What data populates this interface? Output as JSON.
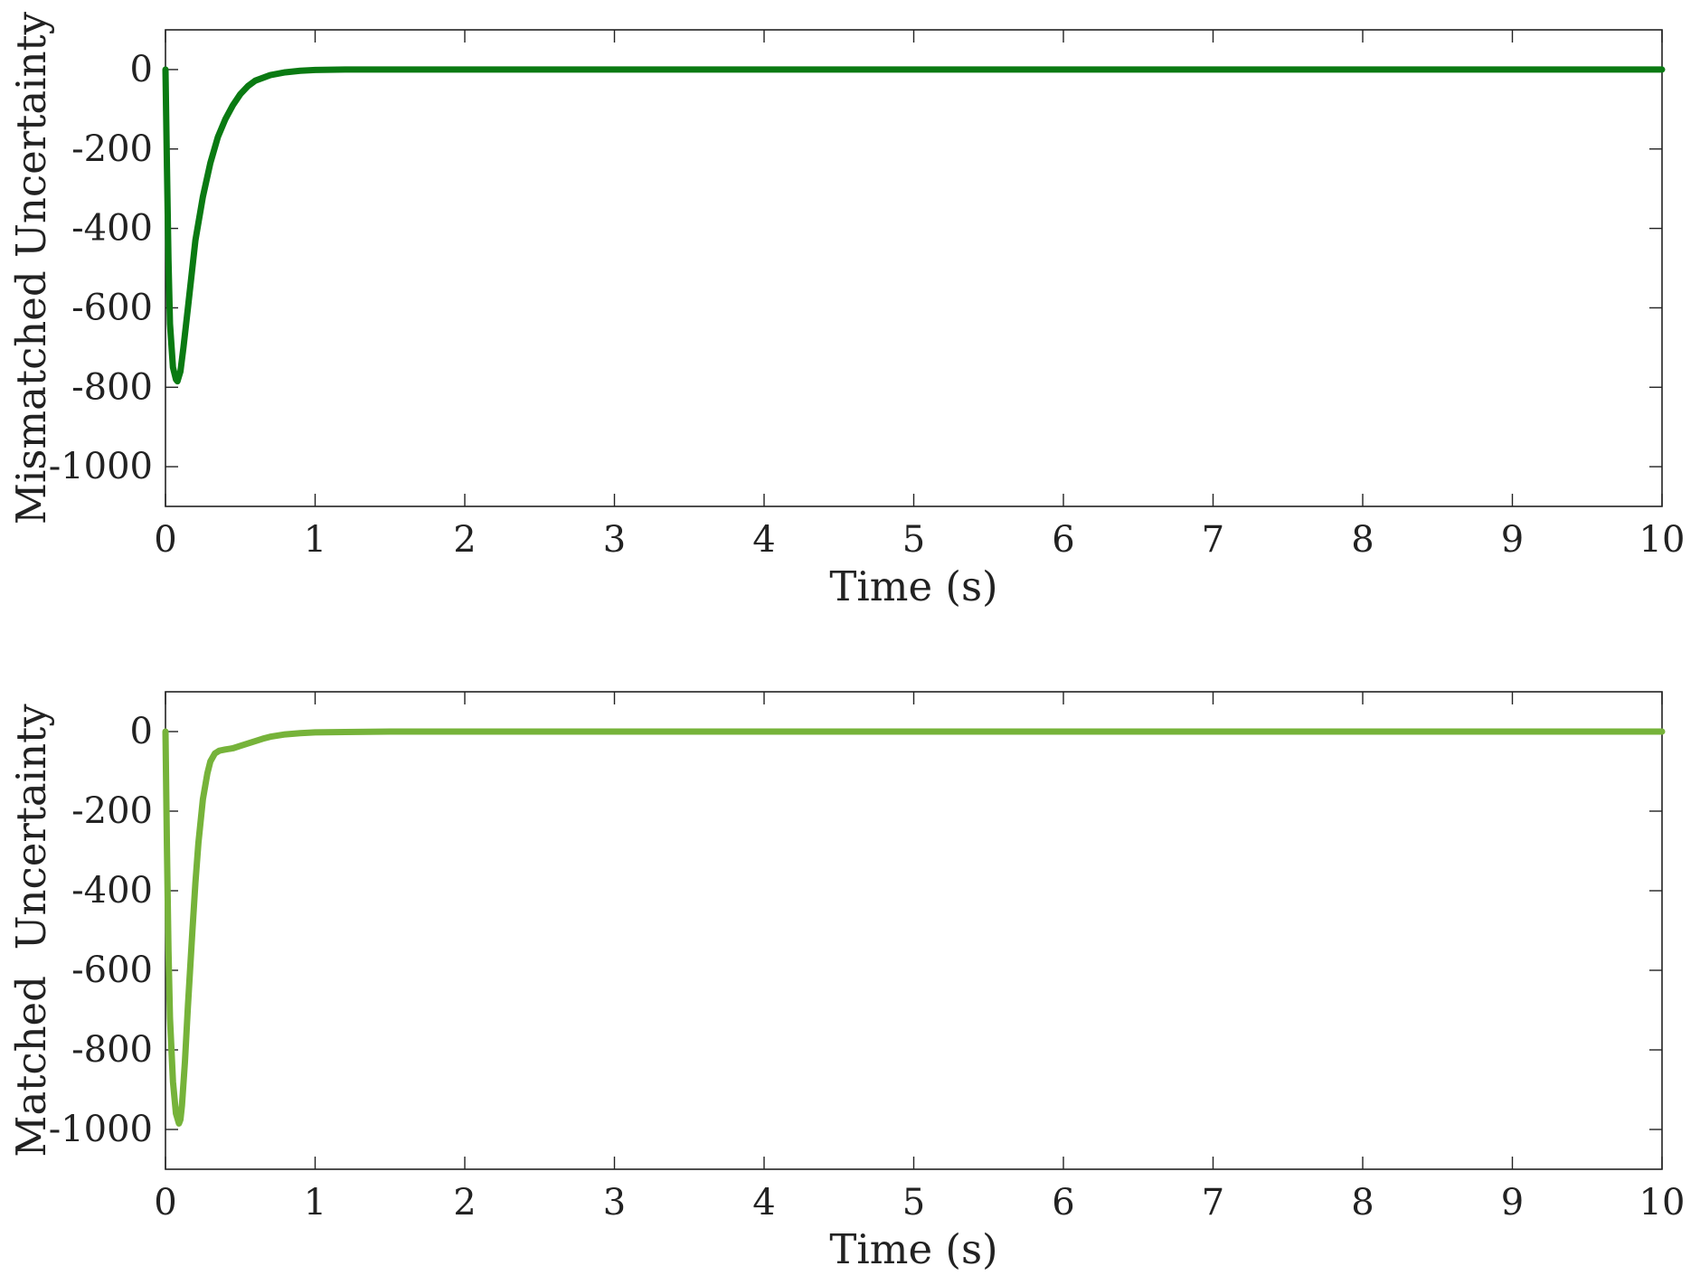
{
  "chart_data": [
    {
      "type": "line",
      "title": "",
      "xlabel": "Time (s)",
      "ylabel": "Mismatched Uncertainty",
      "xlim": [
        0,
        10
      ],
      "ylim": [
        -1100,
        100
      ],
      "x_ticks": [
        "0",
        "1",
        "2",
        "3",
        "4",
        "5",
        "6",
        "7",
        "8",
        "9",
        "10"
      ],
      "y_ticks": [
        "0",
        "-200",
        "-400",
        "-600",
        "-800",
        "-1000"
      ],
      "grid": false,
      "color": "#0a7a12",
      "series": [
        {
          "x": [
            0,
            0.01,
            0.02,
            0.03,
            0.05,
            0.07,
            0.08,
            0.1,
            0.12,
            0.15,
            0.2,
            0.25,
            0.3,
            0.35,
            0.4,
            0.45,
            0.5,
            0.55,
            0.6,
            0.7,
            0.8,
            0.9,
            1.0,
            1.2,
            1.5,
            2,
            3,
            4,
            5,
            6,
            7,
            8,
            9,
            10
          ],
          "y": [
            0,
            -250,
            -480,
            -640,
            -750,
            -780,
            -785,
            -760,
            -700,
            -600,
            -430,
            -320,
            -235,
            -170,
            -125,
            -90,
            -62,
            -42,
            -28,
            -14,
            -7,
            -3,
            -1,
            0,
            0,
            0,
            0,
            0,
            0,
            0,
            0,
            0,
            0,
            0
          ]
        }
      ]
    },
    {
      "type": "line",
      "title": "",
      "xlabel": "Time (s)",
      "ylabel": "Matched  Uncertainty",
      "xlim": [
        0,
        10
      ],
      "ylim": [
        -1100,
        100
      ],
      "x_ticks": [
        "0",
        "1",
        "2",
        "3",
        "4",
        "5",
        "6",
        "7",
        "8",
        "9",
        "10"
      ],
      "y_ticks": [
        "0",
        "-200",
        "-400",
        "-600",
        "-800",
        "-1000"
      ],
      "grid": false,
      "color": "#76b33a",
      "series": [
        {
          "x": [
            0,
            0.01,
            0.02,
            0.03,
            0.05,
            0.07,
            0.09,
            0.1,
            0.11,
            0.13,
            0.15,
            0.18,
            0.2,
            0.22,
            0.25,
            0.28,
            0.3,
            0.33,
            0.36,
            0.4,
            0.45,
            0.5,
            0.55,
            0.6,
            0.65,
            0.7,
            0.8,
            0.9,
            1.0,
            1.2,
            1.5,
            2,
            3,
            4,
            5,
            6,
            7,
            8,
            9,
            10
          ],
          "y": [
            0,
            -300,
            -550,
            -720,
            -880,
            -960,
            -985,
            -975,
            -940,
            -830,
            -690,
            -500,
            -380,
            -280,
            -170,
            -105,
            -75,
            -55,
            -48,
            -45,
            -42,
            -36,
            -30,
            -24,
            -18,
            -13,
            -7,
            -4,
            -2,
            -1,
            0,
            0,
            0,
            0,
            0,
            0,
            0,
            0,
            0,
            0
          ]
        }
      ]
    }
  ]
}
